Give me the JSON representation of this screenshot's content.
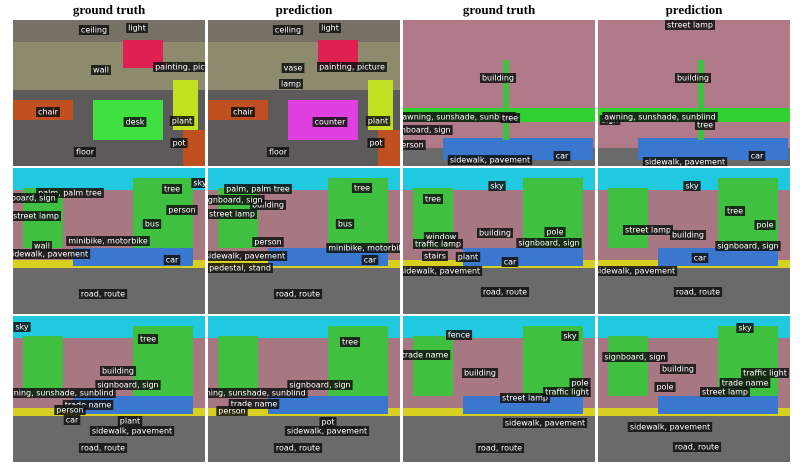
{
  "columns": [
    "ground truth",
    "prediction",
    "ground truth",
    "prediction"
  ],
  "panels": [
    {
      "labels": [
        "ceiling",
        "light",
        "wall",
        "painting, picture",
        "chair",
        "desk",
        "plant",
        "pot",
        "floor"
      ]
    },
    {
      "labels": [
        "ceiling",
        "light",
        "vase",
        "painting, picture",
        "lamp",
        "chair",
        "counter",
        "plant",
        "pot",
        "floor"
      ]
    },
    {
      "labels": [
        "building",
        "awning, sunshade, sunblind",
        "tree",
        "signboard, sign",
        "person",
        "car",
        "sidewalk, pavement"
      ]
    },
    {
      "labels": [
        "street lamp",
        "building",
        "sign",
        "awning, sunshade, sunblind",
        "tree",
        "car",
        "sidewalk, pavement"
      ]
    },
    {
      "labels": [
        "palm, palm tree",
        "tree",
        "sky",
        "signboard, sign",
        "street lamp",
        "person",
        "bus",
        "wall",
        "minibike, motorbike",
        "sidewalk, pavement",
        "car",
        "road, route"
      ]
    },
    {
      "labels": [
        "palm, palm tree",
        "tree",
        "building",
        "signboard, sign",
        "street lamp",
        "bus",
        "person",
        "minibike, motorbike",
        "sidewalk, pavement",
        "car",
        "pedestal, stand",
        "road, route"
      ]
    },
    {
      "labels": [
        "sky",
        "tree",
        "window",
        "traffic lamp",
        "building",
        "pole",
        "signboard, sign",
        "stairs",
        "plant",
        "car",
        "sidewalk, pavement",
        "road, route"
      ]
    },
    {
      "labels": [
        "sky",
        "tree",
        "street lamp",
        "building",
        "pole",
        "signboard, sign",
        "car",
        "sidewalk, pavement",
        "road, route"
      ]
    },
    {
      "labels": [
        "sky",
        "tree",
        "building",
        "signboard, sign",
        "awning, sunshade, sunblind",
        "trade name",
        "person",
        "plant",
        "car",
        "sidewalk, pavement",
        "road, route"
      ]
    },
    {
      "labels": [
        "tree",
        "awning, sunshade, sunblind",
        "signboard, sign",
        "trade name",
        "person",
        "pot",
        "sidewalk, pavement",
        "road, route"
      ]
    },
    {
      "labels": [
        "fence",
        "sky",
        "trade name",
        "building",
        "street lamp",
        "traffic light",
        "pole",
        "sidewalk, pavement",
        "road, route"
      ]
    },
    {
      "labels": [
        "sky",
        "signboard, sign",
        "building",
        "street lamp",
        "trade name",
        "traffic light",
        "pole",
        "sidewalk, pavement",
        "road, route"
      ]
    }
  ]
}
